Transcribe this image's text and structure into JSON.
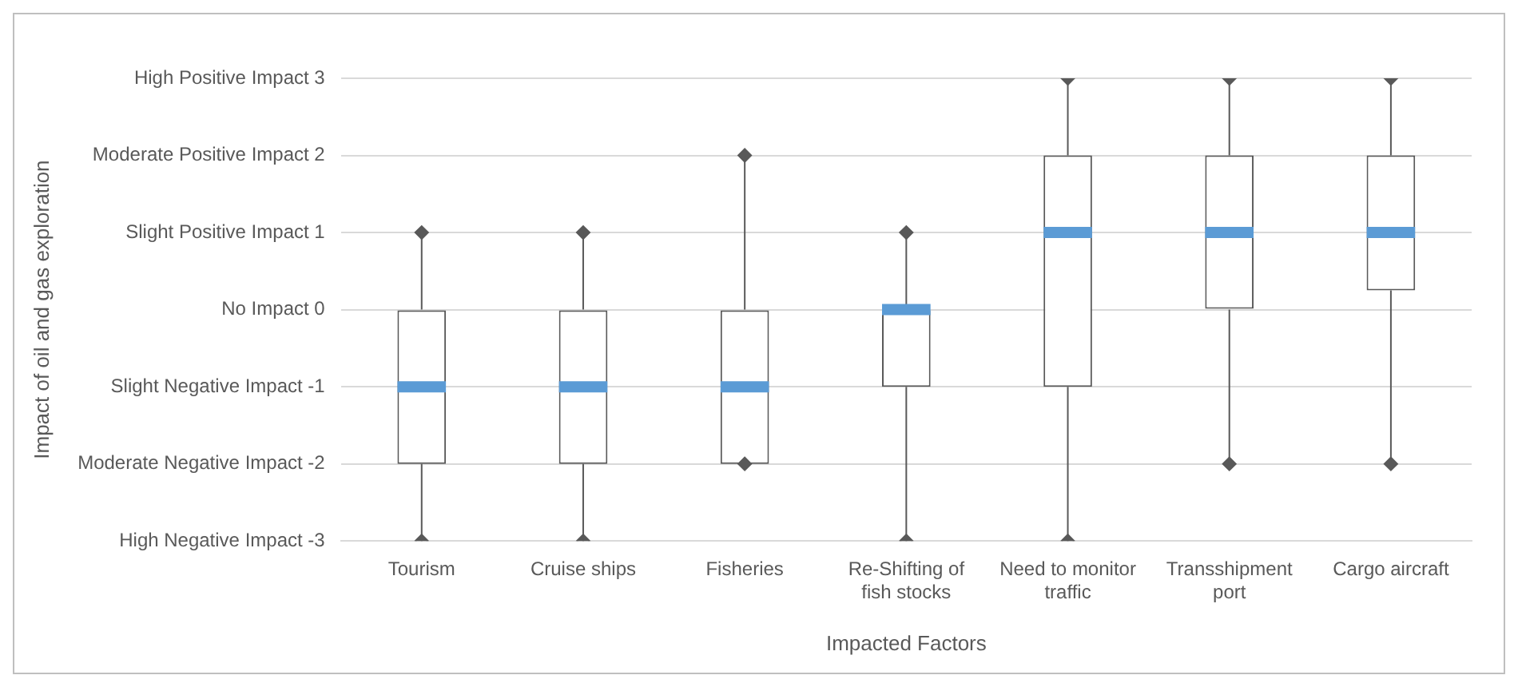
{
  "chart_data": {
    "type": "box",
    "xlabel": "Impacted Factors",
    "ylabel": "Impact of oil and gas exploration",
    "categories": [
      "Tourism",
      "Cruise ships",
      "Fisheries",
      "Re-Shifting of fish stocks",
      "Need to monitor traffic",
      "Transshipment port",
      "Cargo aircraft"
    ],
    "series": [
      {
        "color": "#595959",
        "boxes": [
          {
            "low": -3,
            "q1": -2,
            "median": -1,
            "q3": 0,
            "high": 1
          },
          {
            "low": -3,
            "q1": -2,
            "median": -1,
            "q3": 0,
            "high": 1
          },
          {
            "low": -2,
            "q1": -2,
            "median": -1,
            "q3": 0,
            "high": 2
          },
          {
            "low": -3,
            "q1": -1,
            "median": 0,
            "q3": 0,
            "high": 1
          },
          {
            "low": -3,
            "q1": -1,
            "median": 1,
            "q3": 2,
            "high": 3
          },
          {
            "low": -2,
            "q1": 0,
            "median": 1,
            "q3": 2,
            "high": 3
          },
          {
            "low": -2,
            "q1": 0.25,
            "median": 1,
            "q3": 2,
            "high": 3
          }
        ]
      },
      {
        "type": "scatter",
        "color": "#595959",
        "x": [
          "Tourism",
          "Tourism",
          "Cruise ships",
          "Cruise ships",
          "Fisheries",
          "Fisheries",
          "Re-Shifting of fish stocks",
          "Re-Shifting of fish stocks",
          "Need to monitor traffic",
          "Need to monitor traffic",
          "Transshipment port",
          "Transshipment port",
          "Cargo aircraft",
          "Cargo aircraft"
        ],
        "values": [
          -3,
          1,
          -3,
          1,
          -2,
          2,
          -3,
          1,
          -3,
          3,
          -2,
          3,
          -2,
          3
        ]
      }
    ],
    "ylim": [
      -3,
      3
    ],
    "yticks": [
      {
        "value": -3,
        "label": "High Negative Impact -3"
      },
      {
        "value": -2,
        "label": "Moderate Negative Impact -2"
      },
      {
        "value": -1,
        "label": "Slight Negative Impact -1"
      },
      {
        "value": 0,
        "label": "No Impact 0"
      },
      {
        "value": 1,
        "label": "Slight Positive Impact 1"
      },
      {
        "value": 2,
        "label": "Moderate Positive Impact 2"
      },
      {
        "value": 3,
        "label": "High Positive Impact 3"
      }
    ],
    "grid": "y",
    "legend": false,
    "marker": "diamond"
  }
}
